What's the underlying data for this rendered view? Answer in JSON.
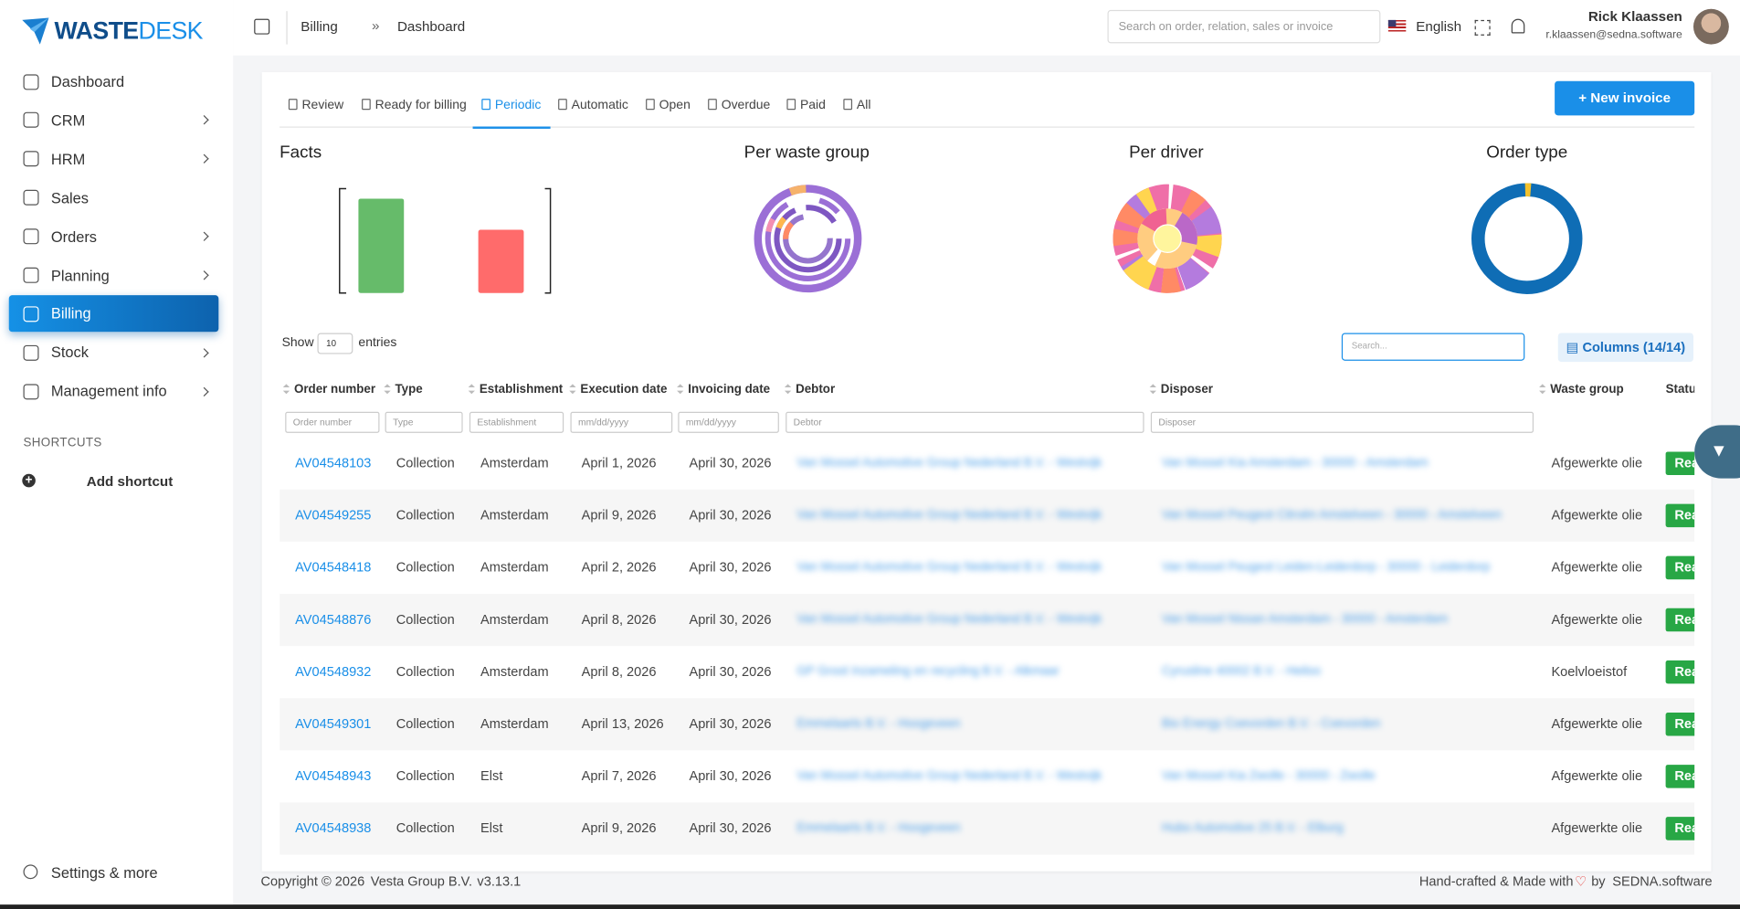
{
  "brand": {
    "bold": "WASTE",
    "light": "DESK"
  },
  "sidebar": {
    "items": [
      {
        "label": "Dashboard",
        "submenu": false
      },
      {
        "label": "CRM",
        "submenu": true
      },
      {
        "label": "HRM",
        "submenu": true
      },
      {
        "label": "Sales",
        "submenu": false
      },
      {
        "label": "Orders",
        "submenu": true
      },
      {
        "label": "Planning",
        "submenu": true
      },
      {
        "label": "Billing",
        "submenu": false,
        "active": true
      },
      {
        "label": "Stock",
        "submenu": true
      },
      {
        "label": "Management info",
        "submenu": true
      }
    ],
    "shortcuts_title": "SHORTCUTS",
    "add_shortcut": "Add shortcut",
    "settings": "Settings & more"
  },
  "header": {
    "breadcrumb": [
      "Billing",
      "Dashboard"
    ],
    "separator": "»",
    "search_placeholder": "Search on order, relation, sales or invoice",
    "language": "English",
    "user_name": "Rick Klaassen",
    "user_email": "r.klaassen@sedna.software"
  },
  "tabs": [
    {
      "label": "Review"
    },
    {
      "label": "Ready for billing"
    },
    {
      "label": "Periodic",
      "active": true
    },
    {
      "label": "Automatic"
    },
    {
      "label": "Open"
    },
    {
      "label": "Overdue"
    },
    {
      "label": "Paid"
    },
    {
      "label": "All"
    }
  ],
  "new_invoice": "New invoice",
  "charts": {
    "facts": {
      "title": "Facts",
      "values": [
        100,
        67
      ],
      "colors": [
        "#66bb6a",
        "#ff6b6b"
      ]
    },
    "waste_group": {
      "title": "Per waste group"
    },
    "driver": {
      "title": "Per driver"
    },
    "order_type": {
      "title": "Order type"
    }
  },
  "table": {
    "show": "Show",
    "entries": "entries",
    "page_length": "10",
    "search_placeholder": "Search...",
    "columns_button": "Columns (14/14)",
    "headers": [
      "Order number",
      "Type",
      "Establishment",
      "Execution date",
      "Invoicing date",
      "Debtor",
      "Disposer",
      "Waste group",
      "Status"
    ],
    "filters": [
      "Order number",
      "Type",
      "Establishment",
      "mm/dd/yyyy",
      "mm/dd/yyyy",
      "Debtor",
      "Disposer"
    ],
    "rows": [
      [
        "AV04548103",
        "Collection",
        "Amsterdam",
        "April 1, 2026",
        "April 30, 2026",
        "Van Mossel Automotive Group Nederland B.V. - Westvijk",
        "Van Mossel Kia Amsterdam - 30000 - Amsterdam",
        "Afgewerkte olie",
        "Ready"
      ],
      [
        "AV04549255",
        "Collection",
        "Amsterdam",
        "April 9, 2026",
        "April 30, 2026",
        "Van Mossel Automotive Group Nederland B.V. - Westvijk",
        "Van Mossel Peugeot Citroën Amstelveen - 30000 - Amstelveen",
        "Afgewerkte olie",
        "Ready"
      ],
      [
        "AV04548418",
        "Collection",
        "Amsterdam",
        "April 2, 2026",
        "April 30, 2026",
        "Van Mossel Automotive Group Nederland B.V. - Westvijk",
        "Van Mossel Peugeot Leiden-Leiderdorp - 30000 - Leiderdorp",
        "Afgewerkte olie",
        "Ready"
      ],
      [
        "AV04548876",
        "Collection",
        "Amsterdam",
        "April 8, 2026",
        "April 30, 2026",
        "Van Mossel Automotive Group Nederland B.V. - Westvijk",
        "Van Mossel Nissan Amsterdam - 30000 - Amsterdam",
        "Afgewerkte olie",
        "Ready"
      ],
      [
        "AV04548932",
        "Collection",
        "Amsterdam",
        "April 8, 2026",
        "April 30, 2026",
        "GP Groot Inzameling en recycling B.V. - Alkmaar",
        "Cyrusline 40002 B.V. - Heiloo",
        "Koelvloeistof",
        "Ready"
      ],
      [
        "AV04549301",
        "Collection",
        "Amsterdam",
        "April 13, 2026",
        "April 30, 2026",
        "Emmelaarts B.V. - Hoogeveen",
        "Bio Energy Coevorden B.V. - Coevorden",
        "Afgewerkte olie",
        "Ready"
      ],
      [
        "AV04548943",
        "Collection",
        "Elst",
        "April 7, 2026",
        "April 30, 2026",
        "Van Mossel Automotive Group Nederland B.V. - Westvijk",
        "Van Mossel Kia Zwolle - 30000 - Zwolle",
        "Afgewerkte olie",
        "Ready"
      ],
      [
        "AV04548938",
        "Collection",
        "Elst",
        "April 9, 2026",
        "April 30, 2026",
        "Emmelaarts B.V. - Hoogeveen",
        "Hubo Automotive 25 B.V. - Elburg",
        "Afgewerkte olie",
        "Ready"
      ]
    ]
  },
  "footer": {
    "copyright": "Copyright © 2026",
    "company": "Vesta Group B.V.",
    "version": "v3.13.1",
    "crafted": "Hand-crafted & Made with",
    "by": "by",
    "link": "SEDNA.software"
  }
}
